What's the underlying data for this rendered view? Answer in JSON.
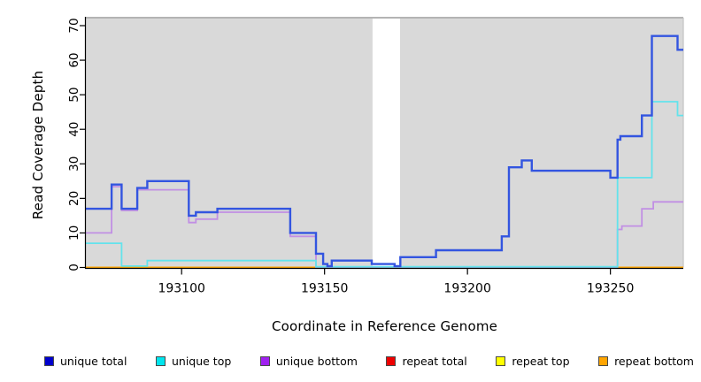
{
  "chart_data": {
    "type": "line",
    "style": "step-coverage-plot",
    "title": "",
    "xlabel": "Coordinate in Reference Genome",
    "ylabel": "Read Coverage Depth",
    "x_domain": [
      193066.5,
      193275.5
    ],
    "y_domain": [
      0,
      71.5
    ],
    "x_ticks": [
      193100,
      193150,
      193200,
      193250
    ],
    "y_ticks": [
      0,
      10,
      20,
      30,
      40,
      50,
      60,
      70
    ],
    "grid": false,
    "panel_background": "#d9d9d9",
    "gap_region": {
      "x_start": 193166.8,
      "x_end": 193176.4,
      "color": "#ffffff"
    },
    "legend_position": "bottom",
    "series": [
      {
        "name": "repeat total",
        "legend_color": "#ee0000",
        "line_color": "#dd5471",
        "width": 1.6,
        "points": [
          [
            193066.5,
            0
          ]
        ],
        "x_end": 193275.5
      },
      {
        "name": "repeat top",
        "legend_color": "#ffff00",
        "line_color": "#ffff00",
        "width": 1.6,
        "points": [
          [
            193066.5,
            0
          ]
        ],
        "x_end": 193275.5
      },
      {
        "name": "repeat bottom",
        "legend_color": "#ffa500",
        "line_color": "#ffa500",
        "width": 2,
        "points": [
          [
            193066.5,
            0
          ]
        ],
        "x_end": 193275.5,
        "visible_segments": [
          [
            193066.5,
            193166.8
          ],
          [
            193252.4,
            193275.5
          ]
        ]
      },
      {
        "name": "unique bottom",
        "legend_color": "#a020f0",
        "line_color": "#c18fe4",
        "width": 1.8,
        "points": [
          [
            193066.5,
            10
          ],
          [
            193075.5,
            23.4
          ],
          [
            193079,
            16.5
          ],
          [
            193084.5,
            22.5
          ],
          [
            193102.5,
            13
          ],
          [
            193105,
            14
          ],
          [
            193112.5,
            16
          ],
          [
            193138,
            9
          ],
          [
            193147,
            0.1
          ],
          [
            193252.5,
            11
          ],
          [
            193254,
            12
          ],
          [
            193261,
            17
          ],
          [
            193265,
            19
          ]
        ],
        "x_end": 193275.5
      },
      {
        "name": "unique top",
        "legend_color": "#00e5ee",
        "line_color": "#63e3ec",
        "width": 1.8,
        "points": [
          [
            193066.5,
            7
          ],
          [
            193079,
            0.4
          ],
          [
            193088,
            2
          ],
          [
            193147,
            0.2
          ],
          [
            193252.5,
            26
          ],
          [
            193264.5,
            48
          ],
          [
            193273.5,
            44
          ]
        ],
        "x_end": 193275.5
      },
      {
        "name": "unique total",
        "legend_color": "#0000cd",
        "line_color": "#3355e0",
        "width": 2.4,
        "points": [
          [
            193066.5,
            17
          ],
          [
            193075.5,
            24
          ],
          [
            193079,
            17
          ],
          [
            193084.5,
            23
          ],
          [
            193088,
            25
          ],
          [
            193102.5,
            15
          ],
          [
            193105,
            16
          ],
          [
            193112.5,
            17
          ],
          [
            193138,
            10
          ],
          [
            193147,
            4
          ],
          [
            193149.5,
            1
          ],
          [
            193151,
            0.4
          ],
          [
            193152.5,
            2
          ],
          [
            193166.5,
            1
          ],
          [
            193174.5,
            0.4
          ],
          [
            193176.5,
            3
          ],
          [
            193189,
            5
          ],
          [
            193212,
            9
          ],
          [
            193214.5,
            29
          ],
          [
            193219,
            31
          ],
          [
            193222.5,
            28
          ],
          [
            193250,
            26
          ],
          [
            193252.5,
            37
          ],
          [
            193253.5,
            38
          ],
          [
            193261,
            44
          ],
          [
            193264.5,
            67
          ],
          [
            193273.5,
            63
          ]
        ],
        "x_end": 193275.5
      }
    ],
    "legend_order": [
      "unique total",
      "unique top",
      "unique bottom",
      "repeat total",
      "repeat top",
      "repeat bottom"
    ]
  },
  "titles": {
    "x_axis": "Coordinate in Reference Genome",
    "y_axis": "Read Coverage Depth"
  }
}
